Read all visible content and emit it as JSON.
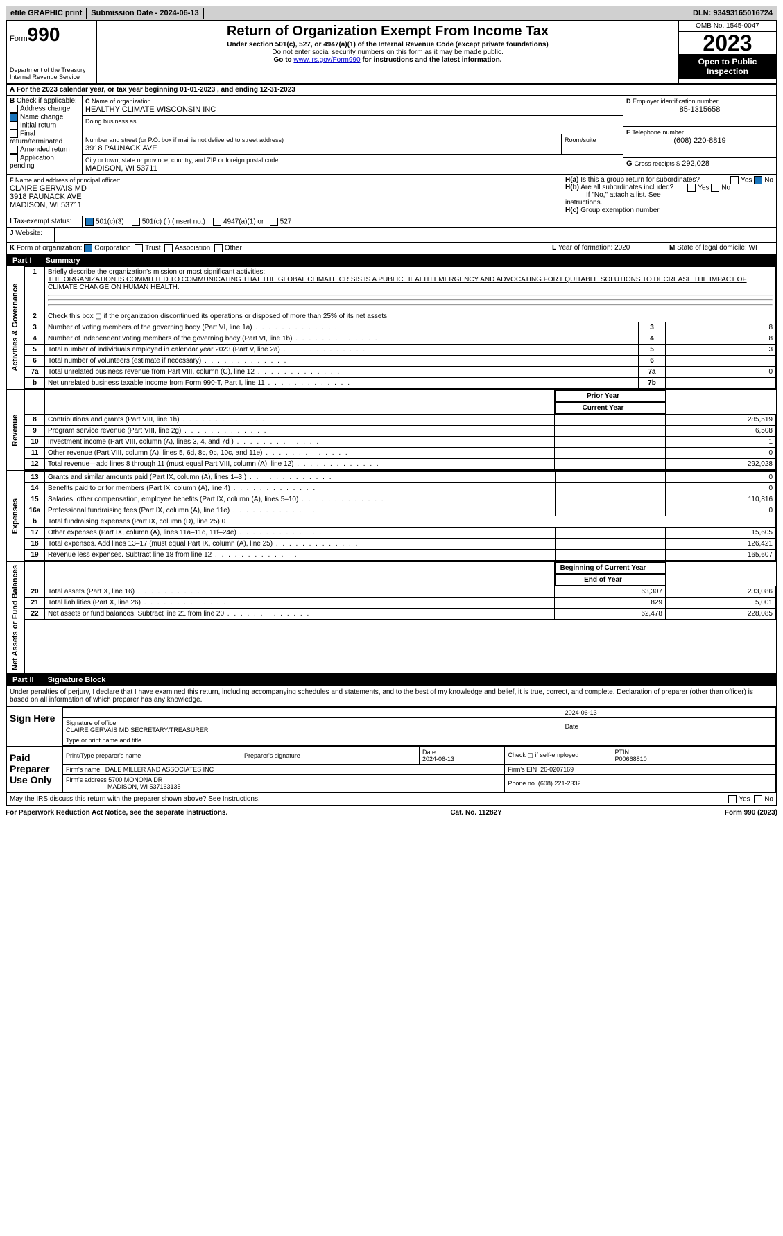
{
  "top": {
    "efile": "efile GRAPHIC print",
    "subdate_lbl": "Submission Date - ",
    "subdate": "2024-06-13",
    "dln_lbl": "DLN: ",
    "dln": "93493165016724"
  },
  "header": {
    "form": "Form",
    "num": "990",
    "dept": "Department of the Treasury",
    "irs": "Internal Revenue Service",
    "title": "Return of Organization Exempt From Income Tax",
    "sub": "Under section 501(c), 527, or 4947(a)(1) of the Internal Revenue Code (except private foundations)",
    "ssn": "Do not enter social security numbers on this form as it may be made public.",
    "goto": "Go to ",
    "gotourl": "www.irs.gov/Form990",
    "gotoafter": " for instructions and the latest information.",
    "omb": "OMB No. 1545-0047",
    "year": "2023",
    "insp": "Open to Public Inspection"
  },
  "A": {
    "text": "For the 2023 calendar year, or tax year beginning ",
    "begin": "01-01-2023",
    "mid": " , and ending ",
    "end": "12-31-2023"
  },
  "B": {
    "lbl": "Check if applicable:",
    "items": [
      "Address change",
      "Name change",
      "Initial return",
      "Final return/terminated",
      "Amended return",
      "Application pending"
    ],
    "checked": 1
  },
  "C": {
    "name_lbl": "Name of organization",
    "name": "HEALTHY CLIMATE WISCONSIN INC",
    "dba_lbl": "Doing business as",
    "addr_lbl": "Number and street (or P.O. box if mail is not delivered to street address)",
    "addr": "3918 PAUNACK AVE",
    "room_lbl": "Room/suite",
    "city_lbl": "City or town, state or province, country, and ZIP or foreign postal code",
    "city": "MADISON, WI  53711"
  },
  "D": {
    "lbl": "Employer identification number",
    "val": "85-1315658"
  },
  "E": {
    "lbl": "Telephone number",
    "val": "(608) 220-8819"
  },
  "G": {
    "lbl": "Gross receipts $",
    "val": "292,028"
  },
  "F": {
    "lbl": "Name and address of principal officer:",
    "name": "CLAIRE GERVAIS MD",
    "addr": "3918 PAUNACK AVE",
    "city": "MADISON, WI  53711"
  },
  "H": {
    "a": "Is this a group return for subordinates?",
    "b": "Are all subordinates included?",
    "bnote": "If \"No,\" attach a list. See instructions.",
    "c": "Group exemption number"
  },
  "I": {
    "lbl": "Tax-exempt status:",
    "opts": [
      "501(c)(3)",
      "501(c) (  ) (insert no.)",
      "4947(a)(1) or",
      "527"
    ]
  },
  "J": {
    "lbl": "Website:"
  },
  "K": {
    "lbl": "Form of organization:",
    "opts": [
      "Corporation",
      "Trust",
      "Association",
      "Other"
    ]
  },
  "L": {
    "lbl": "Year of formation: ",
    "val": "2020"
  },
  "M": {
    "lbl": "State of legal domicile: ",
    "val": "WI"
  },
  "part1": {
    "num": "Part I",
    "title": "Summary"
  },
  "summary": {
    "sections": [
      {
        "vlabel": "Activities & Governance",
        "rows": [
          {
            "n": "1",
            "t": "Briefly describe the organization's mission or most significant activities:",
            "mission": "THE ORGANIZATION IS COMMITTED TO COMMUNICATING THAT THE GLOBAL CLIMATE CRISIS IS A PUBLIC HEALTH EMERGENCY AND ADVOCATING FOR EQUITABLE SOLUTIONS TO DECREASE THE IMPACT OF CLIMATE CHANGE ON HUMAN HEALTH."
          },
          {
            "n": "2",
            "t": "Check this box ▢ if the organization discontinued its operations or disposed of more than 25% of its net assets."
          },
          {
            "n": "3",
            "t": "Number of voting members of the governing body (Part VI, line 1a)",
            "c3": "3",
            "c4": "8"
          },
          {
            "n": "4",
            "t": "Number of independent voting members of the governing body (Part VI, line 1b)",
            "c3": "4",
            "c4": "8"
          },
          {
            "n": "5",
            "t": "Total number of individuals employed in calendar year 2023 (Part V, line 2a)",
            "c3": "5",
            "c4": "3"
          },
          {
            "n": "6",
            "t": "Total number of volunteers (estimate if necessary)",
            "c3": "6",
            "c4": ""
          },
          {
            "n": "7a",
            "t": "Total unrelated business revenue from Part VIII, column (C), line 12",
            "c3": "7a",
            "c4": "0"
          },
          {
            "n": "b",
            "t": "Net unrelated business taxable income from Form 990-T, Part I, line 11",
            "c3": "7b",
            "c4": ""
          }
        ]
      },
      {
        "vlabel": "Revenue",
        "header": [
          "Prior Year",
          "Current Year"
        ],
        "rows": [
          {
            "n": "8",
            "t": "Contributions and grants (Part VIII, line 1h)",
            "py": "",
            "cy": "285,519"
          },
          {
            "n": "9",
            "t": "Program service revenue (Part VIII, line 2g)",
            "py": "",
            "cy": "6,508"
          },
          {
            "n": "10",
            "t": "Investment income (Part VIII, column (A), lines 3, 4, and 7d )",
            "py": "",
            "cy": "1"
          },
          {
            "n": "11",
            "t": "Other revenue (Part VIII, column (A), lines 5, 6d, 8c, 9c, 10c, and 11e)",
            "py": "",
            "cy": "0"
          },
          {
            "n": "12",
            "t": "Total revenue—add lines 8 through 11 (must equal Part VIII, column (A), line 12)",
            "py": "",
            "cy": "292,028"
          }
        ]
      },
      {
        "vlabel": "Expenses",
        "rows": [
          {
            "n": "13",
            "t": "Grants and similar amounts paid (Part IX, column (A), lines 1–3 )",
            "py": "",
            "cy": "0"
          },
          {
            "n": "14",
            "t": "Benefits paid to or for members (Part IX, column (A), line 4)",
            "py": "",
            "cy": "0"
          },
          {
            "n": "15",
            "t": "Salaries, other compensation, employee benefits (Part IX, column (A), lines 5–10)",
            "py": "",
            "cy": "110,816"
          },
          {
            "n": "16a",
            "t": "Professional fundraising fees (Part IX, column (A), line 11e)",
            "py": "",
            "cy": "0"
          },
          {
            "n": "b",
            "t": "Total fundraising expenses (Part IX, column (D), line 25) 0",
            "graypy": true
          },
          {
            "n": "17",
            "t": "Other expenses (Part IX, column (A), lines 11a–11d, 11f–24e)",
            "py": "",
            "cy": "15,605"
          },
          {
            "n": "18",
            "t": "Total expenses. Add lines 13–17 (must equal Part IX, column (A), line 25)",
            "py": "",
            "cy": "126,421"
          },
          {
            "n": "19",
            "t": "Revenue less expenses. Subtract line 18 from line 12",
            "py": "",
            "cy": "165,607"
          }
        ]
      },
      {
        "vlabel": "Net Assets or Fund Balances",
        "header": [
          "Beginning of Current Year",
          "End of Year"
        ],
        "rows": [
          {
            "n": "20",
            "t": "Total assets (Part X, line 16)",
            "py": "63,307",
            "cy": "233,086"
          },
          {
            "n": "21",
            "t": "Total liabilities (Part X, line 26)",
            "py": "829",
            "cy": "5,001"
          },
          {
            "n": "22",
            "t": "Net assets or fund balances. Subtract line 21 from line 20",
            "py": "62,478",
            "cy": "228,085"
          }
        ]
      }
    ]
  },
  "part2": {
    "num": "Part II",
    "title": "Signature Block"
  },
  "sig": {
    "para": "Under penalties of perjury, I declare that I have examined this return, including accompanying schedules and statements, and to the best of my knowledge and belief, it is true, correct, and complete. Declaration of preparer (other than officer) is based on all information of which preparer has any knowledge.",
    "here": "Sign Here",
    "sigoff": "Signature of officer",
    "date": "2024-06-13",
    "officer": "CLAIRE GERVAIS MD  SECRETARY/TREASURER",
    "typelbl": "Type or print name and title",
    "paid": "Paid Preparer Use Only",
    "prep_name_lbl": "Print/Type preparer's name",
    "prep_sig_lbl": "Preparer's signature",
    "prep_date_lbl": "Date",
    "prep_date": "2024-06-13",
    "check_lbl": "Check ▢ if self-employed",
    "ptin_lbl": "PTIN",
    "ptin": "P00668810",
    "firm_lbl": "Firm's name",
    "firm": "DALE MILLER AND ASSOCIATES INC",
    "ein_lbl": "Firm's EIN",
    "ein": "26-0207169",
    "faddr_lbl": "Firm's address",
    "faddr": "5700 MONONA DR",
    "fcity": "MADISON, WI  537163135",
    "phone_lbl": "Phone no.",
    "phone": "(608) 221-2332",
    "discuss": "May the IRS discuss this return with the preparer shown above? See Instructions."
  },
  "foot": {
    "pra": "For Paperwork Reduction Act Notice, see the separate instructions.",
    "cat": "Cat. No. 11282Y",
    "form": "Form 990 (2023)"
  }
}
